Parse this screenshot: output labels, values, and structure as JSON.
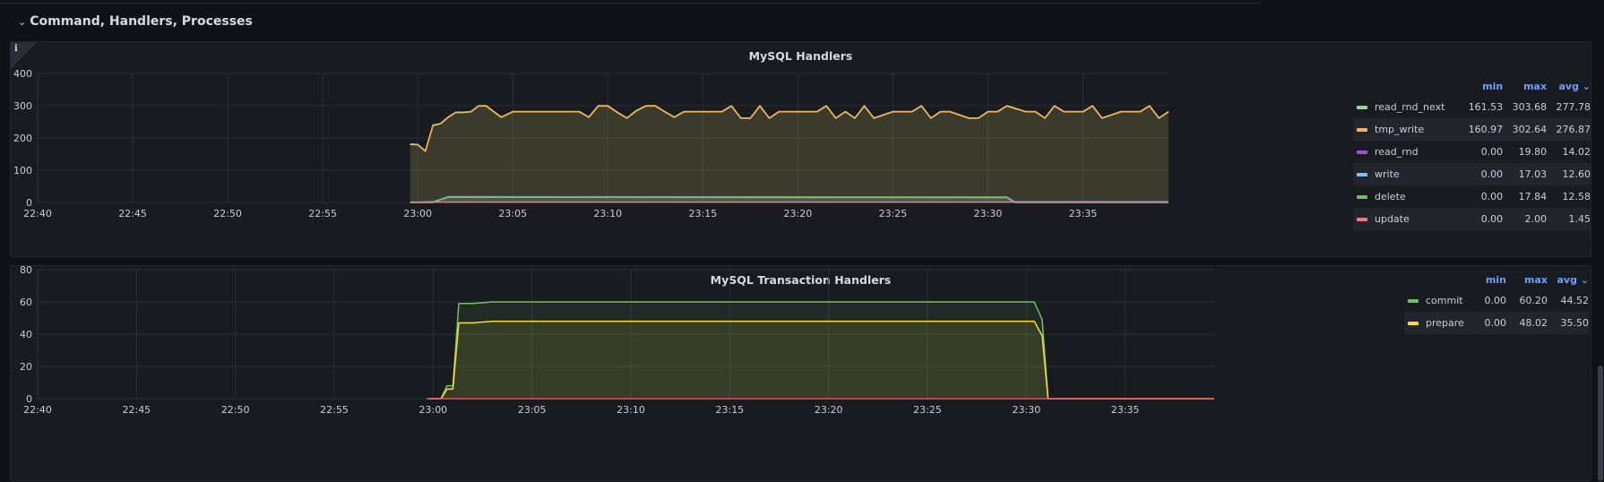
{
  "row": {
    "chevron": "⌄",
    "title": "Command, Handlers, Processes"
  },
  "panels": [
    {
      "title": "MySQL Handlers",
      "legend_headers": {
        "min": "min",
        "max": "max",
        "avg": "avg ⌄"
      },
      "legend": [
        {
          "name": "read_rnd_next",
          "color": "#96d98d",
          "min": "161.53",
          "max": "303.68",
          "avg": "277.78"
        },
        {
          "name": "tmp_write",
          "color": "#ffb357",
          "min": "160.97",
          "max": "302.64",
          "avg": "276.87"
        },
        {
          "name": "read_rnd",
          "color": "#a352cc",
          "min": "0.00",
          "max": "19.80",
          "avg": "14.02"
        },
        {
          "name": "write",
          "color": "#8ab8ff",
          "min": "0.00",
          "max": "17.03",
          "avg": "12.60"
        },
        {
          "name": "delete",
          "color": "#73bf69",
          "min": "0.00",
          "max": "17.84",
          "avg": "12.58"
        },
        {
          "name": "update",
          "color": "#ff7383",
          "min": "0.00",
          "max": "2.00",
          "avg": "1.45"
        }
      ]
    },
    {
      "title": "MySQL Transaction Handlers",
      "legend_headers": {
        "min": "min",
        "max": "max",
        "avg": "avg ⌄"
      },
      "legend": [
        {
          "name": "commit",
          "color": "#73bf69",
          "min": "0.00",
          "max": "60.20",
          "avg": "44.52"
        },
        {
          "name": "prepare",
          "color": "#fade2a",
          "min": "0.00",
          "max": "48.02",
          "avg": "35.50"
        }
      ]
    }
  ],
  "chart_data": [
    {
      "type": "area",
      "title": "MySQL Handlers",
      "x_ticks": [
        "22:40",
        "22:45",
        "22:50",
        "22:55",
        "23:00",
        "23:05",
        "23:10",
        "23:15",
        "23:20",
        "23:25",
        "23:30",
        "23:35"
      ],
      "y_ticks": [
        "0",
        "100",
        "200",
        "300",
        "400"
      ],
      "xlim": [
        "22:40",
        "23:39.5"
      ],
      "ylim": [
        0,
        400
      ],
      "series": [
        {
          "name": "read_rnd_next",
          "color": "#96d98d",
          "x": [
            "22:59.6",
            "23:00",
            "23:00.4",
            "23:00.8",
            "23:01.2",
            "23:01.6",
            "23:02",
            "23:02.4",
            "23:02.8",
            "23:03.2",
            "23:03.6",
            "23:04",
            "23:04.4",
            "23:05",
            "23:06",
            "23:07",
            "23:08",
            "23:08.5",
            "23:09",
            "23:09.5",
            "23:10",
            "23:10.5",
            "23:11",
            "23:11.5",
            "23:12",
            "23:12.5",
            "23:13",
            "23:13.5",
            "23:14",
            "23:15",
            "23:16",
            "23:16.5",
            "23:17",
            "23:17.5",
            "23:18",
            "23:18.5",
            "23:19",
            "23:20",
            "23:21",
            "23:21.5",
            "23:22",
            "23:22.5",
            "23:23",
            "23:23.5",
            "23:24",
            "23:25",
            "23:26",
            "23:26.5",
            "23:27",
            "23:27.5",
            "23:28",
            "23:29",
            "23:29.5",
            "23:30",
            "23:30.5",
            "23:31",
            "23:32",
            "23:32.5",
            "23:33",
            "23:33.5",
            "23:34",
            "23:35",
            "23:35.5",
            "23:36",
            "23:37",
            "23:38",
            "23:38.5",
            "23:39",
            "23:39.5"
          ],
          "y": [
            181,
            180,
            160,
            240,
            245,
            265,
            280,
            280,
            282,
            300,
            300,
            282,
            265,
            282,
            282,
            282,
            282,
            282,
            265,
            300,
            300,
            280,
            262,
            285,
            300,
            300,
            282,
            265,
            282,
            282,
            282,
            300,
            262,
            262,
            300,
            262,
            282,
            282,
            282,
            300,
            262,
            282,
            262,
            300,
            262,
            282,
            282,
            300,
            262,
            282,
            282,
            262,
            262,
            282,
            282,
            300,
            282,
            282,
            262,
            300,
            282,
            282,
            300,
            262,
            282,
            282,
            300,
            262,
            282
          ]
        },
        {
          "name": "tmp_write",
          "color": "#ffb357",
          "x": [
            "22:59.6",
            "23:00",
            "23:00.4",
            "23:00.8",
            "23:01.2",
            "23:01.6",
            "23:02",
            "23:02.4",
            "23:02.8",
            "23:03.2",
            "23:03.6",
            "23:04",
            "23:04.4",
            "23:05",
            "23:06",
            "23:07",
            "23:08",
            "23:08.5",
            "23:09",
            "23:09.5",
            "23:10",
            "23:10.5",
            "23:11",
            "23:11.5",
            "23:12",
            "23:12.5",
            "23:13",
            "23:13.5",
            "23:14",
            "23:15",
            "23:16",
            "23:16.5",
            "23:17",
            "23:17.5",
            "23:18",
            "23:18.5",
            "23:19",
            "23:20",
            "23:21",
            "23:21.5",
            "23:22",
            "23:22.5",
            "23:23",
            "23:23.5",
            "23:24",
            "23:25",
            "23:26",
            "23:26.5",
            "23:27",
            "23:27.5",
            "23:28",
            "23:29",
            "23:29.5",
            "23:30",
            "23:30.5",
            "23:31",
            "23:32",
            "23:32.5",
            "23:33",
            "23:33.5",
            "23:34",
            "23:35",
            "23:35.5",
            "23:36",
            "23:37",
            "23:38",
            "23:38.5",
            "23:39",
            "23:39.5"
          ],
          "y": [
            180,
            179,
            159,
            239,
            244,
            264,
            279,
            279,
            281,
            299,
            299,
            281,
            264,
            281,
            281,
            281,
            281,
            281,
            264,
            299,
            299,
            279,
            261,
            284,
            299,
            299,
            281,
            264,
            281,
            281,
            281,
            299,
            261,
            261,
            299,
            261,
            281,
            281,
            281,
            299,
            261,
            281,
            261,
            299,
            261,
            281,
            281,
            299,
            261,
            281,
            281,
            261,
            261,
            281,
            281,
            299,
            281,
            281,
            261,
            299,
            281,
            281,
            299,
            261,
            281,
            281,
            299,
            261,
            281
          ]
        },
        {
          "name": "read_rnd",
          "color": "#a352cc",
          "x": [
            "22:59.6",
            "23:00.8",
            "23:01.6",
            "23:31",
            "23:31.4",
            "23:39.5"
          ],
          "y": [
            0,
            0,
            18,
            17,
            0,
            0
          ]
        },
        {
          "name": "write",
          "color": "#8ab8ff",
          "x": [
            "22:59.6",
            "23:00.8",
            "23:01.6",
            "23:31",
            "23:31.4",
            "23:39.5"
          ],
          "y": [
            0,
            2,
            17,
            16,
            2,
            2
          ]
        },
        {
          "name": "delete",
          "color": "#73bf69",
          "x": [
            "22:59.6",
            "23:00.8",
            "23:01.6",
            "23:31",
            "23:31.4",
            "23:39.5"
          ],
          "y": [
            0,
            0,
            16,
            15,
            0,
            0
          ]
        },
        {
          "name": "update",
          "color": "#ff7383",
          "x": [
            "22:59.6",
            "23:39.5"
          ],
          "y": [
            1,
            1
          ]
        }
      ]
    },
    {
      "type": "area",
      "title": "MySQL Transaction Handlers",
      "x_ticks": [
        "22:40",
        "22:45",
        "22:50",
        "22:55",
        "23:00",
        "23:05",
        "23:10",
        "23:15",
        "23:20",
        "23:25",
        "23:30",
        "23:35"
      ],
      "y_ticks": [
        "0",
        "20",
        "40",
        "60",
        "80"
      ],
      "xlim": [
        "22:40",
        "23:39.5"
      ],
      "ylim": [
        0,
        80
      ],
      "series": [
        {
          "name": "commit",
          "color": "#73bf69",
          "x": [
            "22:59.7",
            "23:00.4",
            "23:00.7",
            "23:01",
            "23:01.3",
            "23:02",
            "23:03",
            "23:05",
            "23:10",
            "23:15",
            "23:20",
            "23:25",
            "23:30",
            "23:30.4",
            "23:30.8",
            "23:31.1",
            "23:39.5"
          ],
          "y": [
            0,
            0,
            8,
            8,
            59,
            59,
            60,
            60,
            60,
            60,
            60,
            60,
            60,
            60,
            49,
            0,
            0
          ]
        },
        {
          "name": "prepare",
          "color": "#fade2a",
          "x": [
            "22:59.7",
            "23:00.4",
            "23:00.7",
            "23:01",
            "23:01.3",
            "23:02",
            "23:03",
            "23:05",
            "23:10",
            "23:15",
            "23:20",
            "23:25",
            "23:30",
            "23:30.4",
            "23:30.8",
            "23:31.1",
            "23:39.5"
          ],
          "y": [
            0,
            0,
            6,
            6,
            47,
            47,
            48,
            48,
            48,
            48,
            48,
            48,
            48,
            48,
            39,
            0,
            0
          ]
        },
        {
          "name": "",
          "color": "#f2495c",
          "x": [
            "22:59.7",
            "23:39.5"
          ],
          "y": [
            0,
            0
          ]
        }
      ]
    }
  ]
}
